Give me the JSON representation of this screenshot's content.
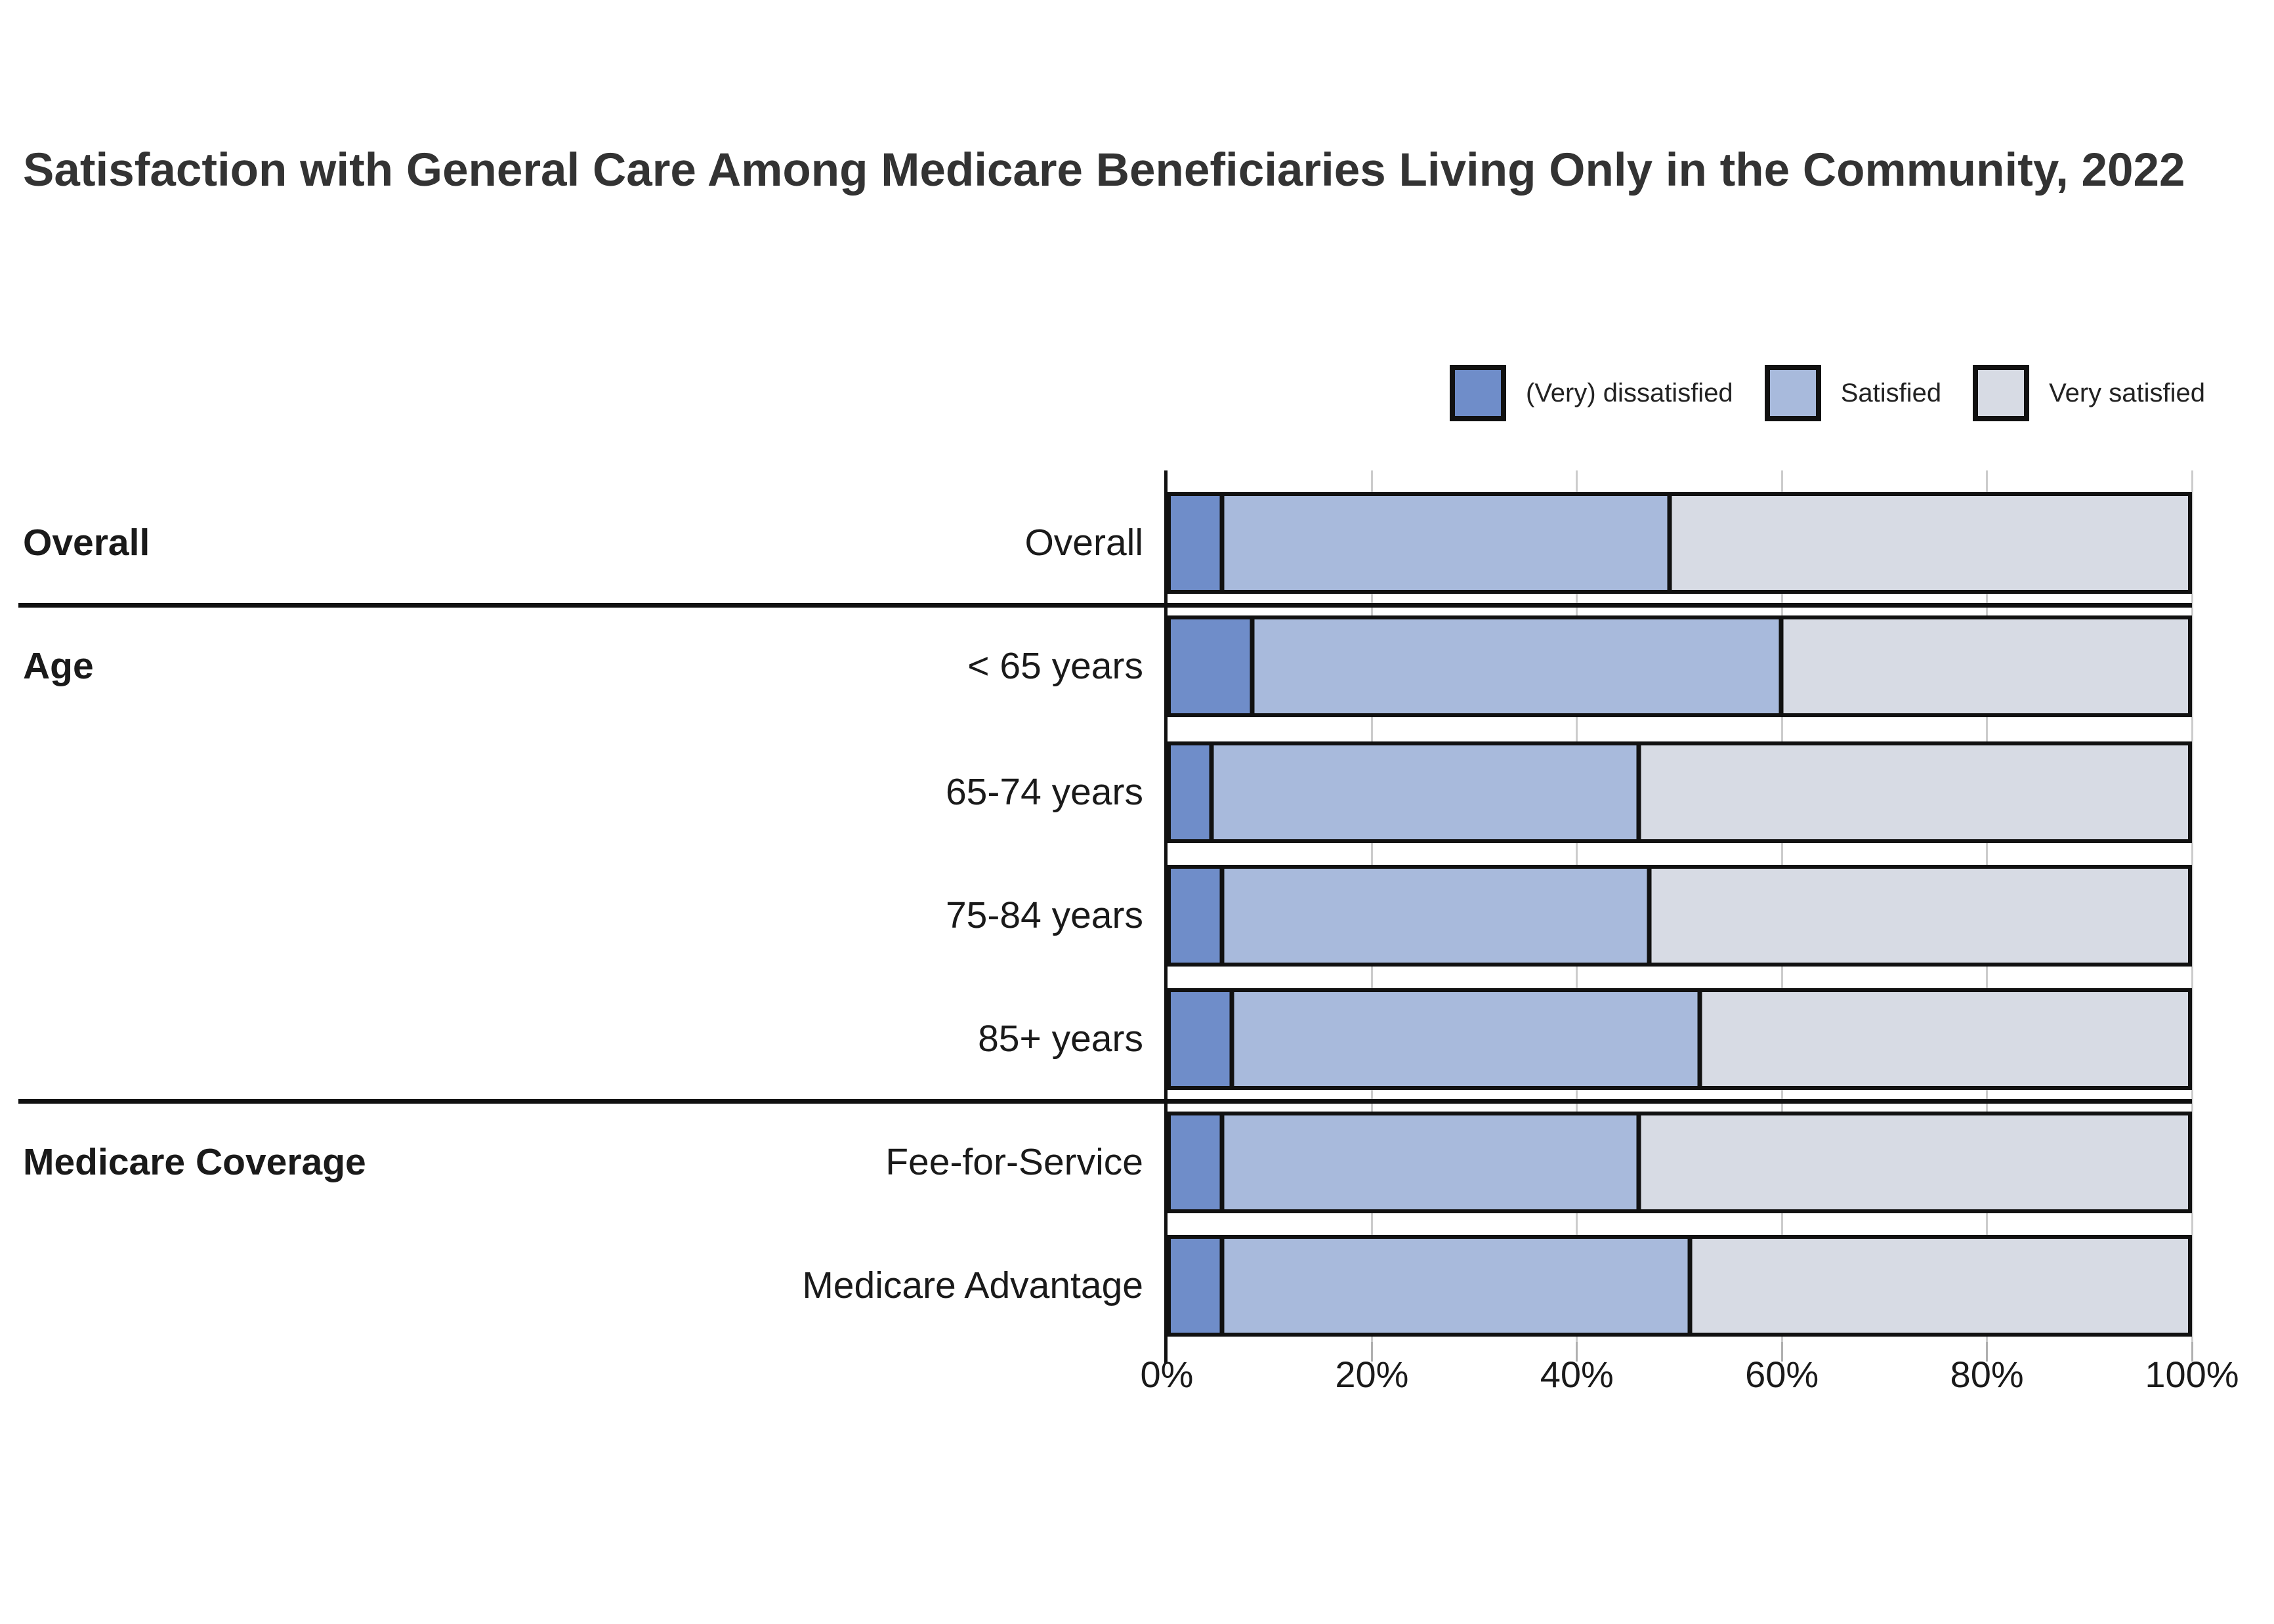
{
  "title": "Satisfaction with General Care Among Medicare Beneficiaries Living Only in the Community, 2022",
  "legend": [
    {
      "label": "(Very) dissatisfied",
      "color": "#6F8DC9",
      "icon": "legend-swatch-dissatisfied"
    },
    {
      "label": "Satisfied",
      "color": "#A8BADC",
      "icon": "legend-swatch-satisfied"
    },
    {
      "label": "Very satisfied",
      "color": "#D7DBE4",
      "icon": "legend-swatch-very-satisfied"
    }
  ],
  "chart_data": {
    "type": "bar",
    "orientation": "horizontal-stacked",
    "title": "Satisfaction with General Care Among Medicare Beneficiaries Living Only in the Community, 2022",
    "categories": [
      "Overall",
      "< 65 years",
      "65-74 years",
      "75-84 years",
      "85+ years",
      "Fee-for-Service",
      "Medicare Advantage"
    ],
    "groups": [
      {
        "label": "Overall",
        "first_row": 0,
        "last_row": 0
      },
      {
        "label": "Age",
        "first_row": 1,
        "last_row": 4
      },
      {
        "label": "Medicare Coverage",
        "first_row": 5,
        "last_row": 6
      }
    ],
    "series": [
      {
        "name": "(Very) dissatisfied",
        "color": "#6F8DC9",
        "values": [
          5,
          8,
          4,
          5,
          6,
          5,
          5
        ]
      },
      {
        "name": "Satisfied",
        "color": "#A8BADC",
        "values": [
          44,
          52,
          42,
          42,
          46,
          41,
          46
        ]
      },
      {
        "name": "Very satisfied",
        "color": "#D7DBE4",
        "values": [
          51,
          40,
          54,
          53,
          48,
          54,
          49
        ]
      }
    ],
    "xlabel": "",
    "ylabel": "",
    "xlim": [
      0,
      100
    ],
    "x_ticks": [
      {
        "label": "0%",
        "value": 0
      },
      {
        "label": "20%",
        "value": 20
      },
      {
        "label": "40%",
        "value": 40
      },
      {
        "label": "60%",
        "value": 60
      },
      {
        "label": "80%",
        "value": 80
      },
      {
        "label": "100%",
        "value": 100
      }
    ],
    "grid": true,
    "legend_position": "top-right"
  }
}
